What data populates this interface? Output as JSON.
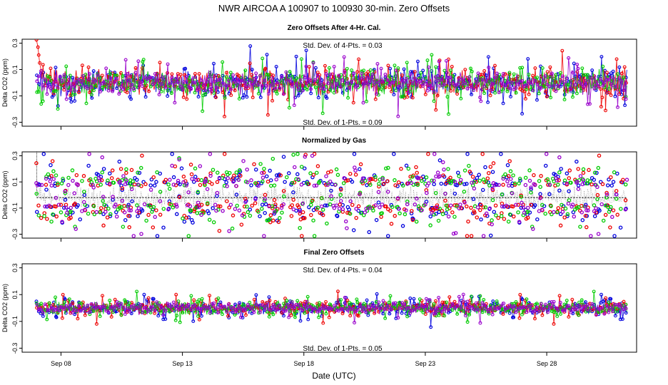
{
  "chart_data": {
    "type": "scatter",
    "title": "NWR   AIRCOA A   100907 to 100930   30-min. Zero Offsets",
    "xlabel": "Date (UTC)",
    "x_range_days": [
      6.4,
      31.7
    ],
    "x_ticks": [
      {
        "day": 8,
        "label": "Sep 08"
      },
      {
        "day": 13,
        "label": "Sep 13"
      },
      {
        "day": 18,
        "label": "Sep 18"
      },
      {
        "day": 23,
        "label": "Sep 23"
      },
      {
        "day": 28,
        "label": "Sep 28"
      }
    ],
    "series_colors": {
      "blue": "#0000dd",
      "red": "#ee0000",
      "green": "#00cc00",
      "purple": "#9900cc",
      "black": "#000000"
    },
    "series_names": [
      "blue",
      "red",
      "green",
      "purple"
    ],
    "panels": [
      {
        "title": "Zero Offsets After 4-Hr. Cal.",
        "ylabel": "Delta CO2 (ppm)",
        "ylim": [
          -0.33,
          0.33
        ],
        "yticks": [
          {
            "v": 0.3,
            "label": "0.3"
          },
          {
            "v": 0.1,
            "label": "0.1"
          },
          {
            "v": -0.1,
            "label": "-0.1"
          },
          {
            "v": -0.3,
            "label": "-0.3"
          }
        ],
        "stat_top": "Std. Dev. of 4-Pts. = 0.03",
        "stat_bottom": "Std. Dev. of 1-Pts. = 0.09",
        "style": "lines",
        "spread": 0.075,
        "start_spike": 0.33
      },
      {
        "title": "Normalized by Gas",
        "ylabel": "Delta CO2 (ppm)",
        "ylim": [
          -0.33,
          0.33
        ],
        "yticks": [
          {
            "v": 0.3,
            "label": "0.3"
          },
          {
            "v": 0.1,
            "label": "0.1"
          },
          {
            "v": -0.1,
            "label": "-0.1"
          },
          {
            "v": -0.3,
            "label": "-0.3"
          }
        ],
        "stat_top": "",
        "stat_bottom": "",
        "style": "points",
        "spread": 0.085,
        "baseline": -0.02
      },
      {
        "title": "Final Zero Offsets",
        "ylabel": "Delta CO2 (ppm)",
        "ylim": [
          -0.33,
          0.33
        ],
        "yticks": [
          {
            "v": 0.3,
            "label": "0.3"
          },
          {
            "v": 0.1,
            "label": "0.1"
          },
          {
            "v": -0.1,
            "label": "-0.1"
          },
          {
            "v": -0.3,
            "label": "-0.3"
          }
        ],
        "stat_top": "Std. Dev. of 4-Pts. = 0.04",
        "stat_bottom": "Std. Dev. of 1-Pts. = 0.05",
        "style": "lines",
        "spread": 0.038
      }
    ]
  }
}
